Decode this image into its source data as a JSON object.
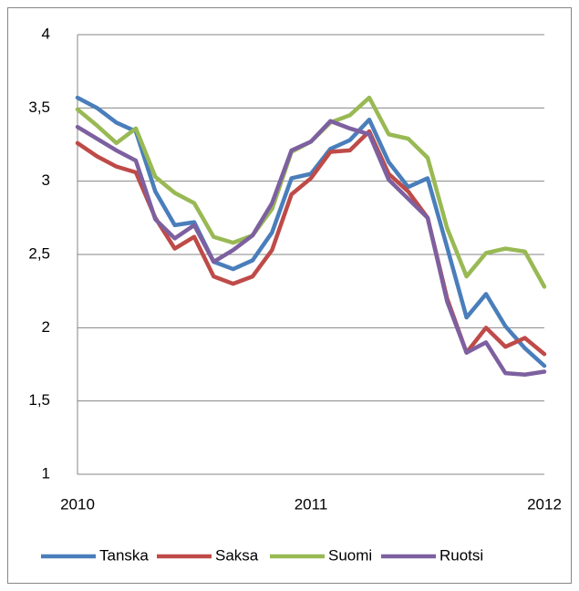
{
  "chart_data": {
    "type": "line",
    "categories": [
      "2010",
      null,
      null,
      null,
      null,
      null,
      null,
      null,
      null,
      null,
      null,
      null,
      "2011",
      null,
      null,
      null,
      null,
      null,
      null,
      null,
      null,
      null,
      null,
      null,
      "2012"
    ],
    "series": [
      {
        "name": "Tanska",
        "color": "#4a7ebb",
        "values": [
          3.57,
          3.5,
          3.4,
          3.34,
          2.93,
          2.7,
          2.72,
          2.45,
          2.4,
          2.46,
          2.65,
          3.02,
          3.05,
          3.22,
          3.28,
          3.42,
          3.13,
          2.96,
          3.02,
          2.55,
          2.07,
          2.23,
          2.01,
          1.86,
          1.74
        ]
      },
      {
        "name": "Saksa",
        "color": "#be4b48",
        "values": [
          3.26,
          3.17,
          3.1,
          3.06,
          2.75,
          2.54,
          2.62,
          2.35,
          2.3,
          2.35,
          2.53,
          2.91,
          3.02,
          3.2,
          3.21,
          3.34,
          3.05,
          2.93,
          2.75,
          2.2,
          1.83,
          2.0,
          1.87,
          1.93,
          1.82
        ]
      },
      {
        "name": "Suomi",
        "color": "#98b954",
        "values": [
          3.49,
          3.38,
          3.26,
          3.36,
          3.03,
          2.92,
          2.85,
          2.62,
          2.58,
          2.63,
          2.81,
          3.2,
          3.27,
          3.4,
          3.45,
          3.57,
          3.32,
          3.29,
          3.16,
          2.68,
          2.35,
          2.51,
          2.54,
          2.52,
          2.28
        ]
      },
      {
        "name": "Ruotsi",
        "color": "#7d60a0",
        "values": [
          3.37,
          3.29,
          3.21,
          3.14,
          2.74,
          2.61,
          2.7,
          2.45,
          2.53,
          2.63,
          2.85,
          3.21,
          3.27,
          3.41,
          3.36,
          3.32,
          3.01,
          2.88,
          2.75,
          2.18,
          1.83,
          1.9,
          1.69,
          1.68,
          1.7
        ]
      }
    ],
    "ylim": [
      1,
      4
    ],
    "yticks": [
      1,
      {
        "value": 1.5,
        "label": "1,5"
      },
      2,
      {
        "value": 2.5,
        "label": "2,5"
      },
      3,
      {
        "value": 3.5,
        "label": "3,5"
      },
      4
    ],
    "grid": true,
    "legend": "bottom"
  }
}
